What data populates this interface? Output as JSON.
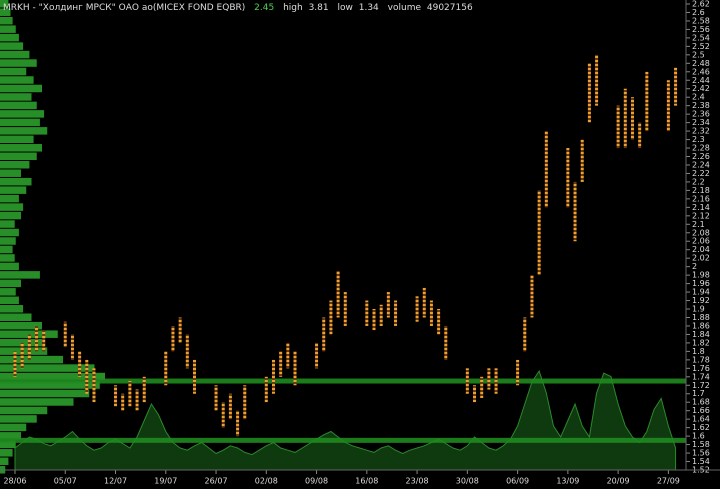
{
  "chart_data": {
    "type": "range-bar",
    "title": "MRKH - \"Холдинг МРСК\" ОАО ао(MICEX FOND EQBR)",
    "last": 2.45,
    "high_label": "high",
    "high": 3.81,
    "low_label": "low",
    "low": 1.34,
    "volume_label": "volume",
    "volume": 49027156,
    "categories": [
      "28/06",
      null,
      null,
      null,
      null,
      null,
      null,
      "05/07",
      null,
      null,
      null,
      null,
      null,
      null,
      "12/07",
      null,
      null,
      null,
      null,
      null,
      null,
      "19/07",
      null,
      null,
      null,
      null,
      null,
      null,
      "26/07",
      null,
      null,
      null,
      null,
      null,
      null,
      "02/08",
      null,
      null,
      null,
      null,
      null,
      null,
      "09/08",
      null,
      null,
      null,
      null,
      null,
      null,
      "16/08",
      null,
      null,
      null,
      null,
      null,
      null,
      "23/08",
      null,
      null,
      null,
      null,
      null,
      null,
      "30/08",
      null,
      null,
      null,
      null,
      null,
      null,
      "06/09",
      null,
      null,
      null,
      null,
      null,
      null,
      "13/09",
      null,
      null,
      null,
      null,
      null,
      null,
      "20/09",
      null,
      null,
      null,
      null,
      null,
      null,
      "27/09",
      null
    ],
    "series": [
      {
        "name": "high",
        "color": "#f0a030",
        "values": [
          1.8,
          1.82,
          1.84,
          1.86,
          1.85,
          null,
          null,
          1.87,
          1.84,
          1.8,
          1.78,
          1.76,
          null,
          null,
          1.72,
          1.7,
          1.73,
          1.71,
          1.74,
          null,
          null,
          1.8,
          1.86,
          1.88,
          1.84,
          1.78,
          null,
          null,
          1.72,
          1.68,
          1.7,
          1.66,
          1.72,
          null,
          null,
          1.74,
          1.78,
          1.8,
          1.82,
          1.8,
          null,
          null,
          1.82,
          1.88,
          1.92,
          1.99,
          1.94,
          null,
          null,
          1.92,
          1.9,
          1.91,
          1.94,
          1.92,
          null,
          null,
          1.93,
          1.95,
          1.92,
          1.9,
          1.86,
          null,
          null,
          1.76,
          1.72,
          1.74,
          1.76,
          1.76,
          null,
          null,
          1.78,
          1.88,
          1.98,
          2.18,
          2.32,
          null,
          null,
          2.28,
          2.2,
          2.3,
          2.48,
          2.5,
          null,
          null,
          2.38,
          2.42,
          2.4,
          2.34,
          2.46,
          null,
          null,
          2.44,
          2.47
        ]
      },
      {
        "name": "low",
        "color": "#f0a030",
        "values": [
          1.74,
          1.76,
          1.78,
          1.8,
          1.8,
          null,
          null,
          1.81,
          1.78,
          1.74,
          1.7,
          1.68,
          null,
          null,
          1.67,
          1.66,
          1.67,
          1.66,
          1.68,
          null,
          null,
          1.72,
          1.8,
          1.82,
          1.76,
          1.7,
          null,
          null,
          1.66,
          1.62,
          1.64,
          1.6,
          1.64,
          null,
          null,
          1.68,
          1.7,
          1.74,
          1.76,
          1.72,
          null,
          null,
          1.76,
          1.8,
          1.84,
          1.88,
          1.86,
          null,
          null,
          1.86,
          1.85,
          1.86,
          1.88,
          1.86,
          null,
          null,
          1.87,
          1.88,
          1.86,
          1.84,
          1.78,
          null,
          null,
          1.7,
          1.68,
          1.69,
          1.71,
          1.7,
          null,
          null,
          1.72,
          1.8,
          1.88,
          1.98,
          2.14,
          null,
          null,
          2.14,
          2.06,
          2.2,
          2.34,
          2.38,
          null,
          null,
          2.28,
          2.28,
          2.3,
          2.28,
          2.32,
          null,
          null,
          2.32,
          2.38
        ]
      }
    ],
    "ylim": [
      1.52,
      2.62
    ],
    "yticks": [
      1.52,
      1.54,
      1.56,
      1.58,
      1.6,
      1.62,
      1.64,
      1.66,
      1.68,
      1.7,
      1.72,
      1.74,
      1.76,
      1.78,
      1.8,
      1.82,
      1.84,
      1.86,
      1.88,
      1.9,
      1.92,
      1.94,
      1.96,
      1.98,
      2,
      2.02,
      2.04,
      2.06,
      2.08,
      2.1,
      2.12,
      2.14,
      2.16,
      2.18,
      2.2,
      2.22,
      2.24,
      2.26,
      2.28,
      2.3,
      2.32,
      2.34,
      2.36,
      2.38,
      2.4,
      2.42,
      2.44,
      2.46,
      2.48,
      2.5,
      2.52,
      2.54,
      2.56,
      2.58,
      2.6,
      2.62
    ],
    "levels": [
      1.73,
      1.59
    ],
    "level_color": "#1f8a1f",
    "volume_series": {
      "color": "#2a8a2a",
      "fill": "#0f3a0f",
      "vlim": [
        0,
        100
      ],
      "values": [
        20,
        25,
        30,
        28,
        24,
        22,
        26,
        30,
        35,
        28,
        22,
        18,
        20,
        25,
        28,
        24,
        20,
        30,
        45,
        60,
        50,
        35,
        25,
        20,
        18,
        22,
        25,
        20,
        15,
        18,
        22,
        20,
        16,
        14,
        18,
        22,
        25,
        20,
        18,
        16,
        20,
        24,
        28,
        32,
        35,
        30,
        25,
        22,
        20,
        18,
        16,
        20,
        22,
        18,
        15,
        18,
        20,
        22,
        25,
        28,
        24,
        20,
        18,
        22,
        30,
        25,
        20,
        18,
        22,
        28,
        40,
        60,
        80,
        90,
        70,
        40,
        30,
        45,
        60,
        40,
        30,
        70,
        88,
        85,
        60,
        40,
        30,
        25,
        35,
        55,
        65,
        40,
        20
      ]
    },
    "profile": {
      "color": "#2fa82f",
      "lim": [
        0,
        100
      ],
      "values": [
        5,
        8,
        12,
        15,
        20,
        25,
        35,
        45,
        70,
        85,
        95,
        100,
        90,
        60,
        45,
        40,
        55,
        40,
        30,
        22,
        18,
        15,
        20,
        38,
        18,
        14,
        12,
        15,
        18,
        14,
        20,
        22,
        18,
        25,
        30,
        20,
        28,
        35,
        40,
        32,
        45,
        38,
        42,
        35,
        30,
        40,
        32,
        25,
        35,
        28,
        22,
        18,
        15,
        12,
        10,
        8
      ]
    }
  }
}
